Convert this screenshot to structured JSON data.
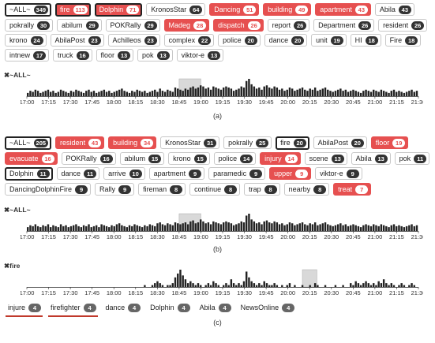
{
  "panels": [
    {
      "caption": "(a)",
      "tags": [
        {
          "label": "~ALL~",
          "count": "349",
          "style": "sel"
        },
        {
          "label": "fire",
          "count": "113",
          "style": "red sel"
        },
        {
          "label": "Dolphin",
          "count": "71",
          "style": "red sel"
        },
        {
          "label": "KronosStar",
          "count": "64",
          "style": ""
        },
        {
          "label": "Dancing",
          "count": "51",
          "style": "red"
        },
        {
          "label": "building",
          "count": "49",
          "style": "red"
        },
        {
          "label": "apartment",
          "count": "43",
          "style": "red"
        },
        {
          "label": "Abila",
          "count": "43",
          "style": ""
        },
        {
          "label": "pokrally",
          "count": "30",
          "style": ""
        },
        {
          "label": "abilum",
          "count": "29",
          "style": ""
        },
        {
          "label": "POKRally",
          "count": "29",
          "style": ""
        },
        {
          "label": "Madeg",
          "count": "28",
          "style": "red"
        },
        {
          "label": "dispatch",
          "count": "26",
          "style": "red"
        },
        {
          "label": "report",
          "count": "26",
          "style": ""
        },
        {
          "label": "Department",
          "count": "26",
          "style": ""
        },
        {
          "label": "resident",
          "count": "26",
          "style": ""
        },
        {
          "label": "krono",
          "count": "24",
          "style": ""
        },
        {
          "label": "AbilaPost",
          "count": "23",
          "style": ""
        },
        {
          "label": "Achilleos",
          "count": "23",
          "style": ""
        },
        {
          "label": "complex",
          "count": "22",
          "style": ""
        },
        {
          "label": "police",
          "count": "20",
          "style": ""
        },
        {
          "label": "dance",
          "count": "20",
          "style": ""
        },
        {
          "label": "unit",
          "count": "19",
          "style": ""
        },
        {
          "label": "HI",
          "count": "18",
          "style": ""
        },
        {
          "label": "Fire",
          "count": "18",
          "style": ""
        },
        {
          "label": "intnew",
          "count": "17",
          "style": ""
        },
        {
          "label": "truck",
          "count": "16",
          "style": ""
        },
        {
          "label": "floor",
          "count": "13",
          "style": ""
        },
        {
          "label": "pok",
          "count": "13",
          "style": ""
        },
        {
          "label": "viktor-e",
          "count": "13",
          "style": ""
        }
      ],
      "timeline": {
        "label": "✖~ALL~",
        "ticks": [
          "17:00",
          "17:15",
          "17:30",
          "17:45",
          "18:00",
          "18:15",
          "18:30",
          "18:45",
          "19:00",
          "19:15",
          "19:30",
          "19:45",
          "20:00",
          "20:15",
          "20:30",
          "20:45",
          "21:00",
          "21:15",
          "21:30"
        ],
        "highlight_times": [
          "18:45",
          "19:00"
        ],
        "values": [
          3,
          5,
          4,
          6,
          5,
          3,
          4,
          5,
          6,
          4,
          5,
          3,
          4,
          6,
          5,
          4,
          3,
          5,
          4,
          6,
          5,
          4,
          3,
          5,
          6,
          4,
          5,
          3,
          4,
          5,
          6,
          4,
          5,
          3,
          4,
          5,
          6,
          7,
          5,
          4,
          3,
          5,
          4,
          6,
          5,
          4,
          5,
          3,
          4,
          5,
          6,
          4,
          7,
          5,
          4,
          6,
          5,
          4,
          8,
          7,
          6,
          5,
          7,
          6,
          8,
          9,
          7,
          8,
          10,
          9,
          7,
          8,
          6,
          9,
          8,
          7,
          6,
          8,
          9,
          8,
          7,
          5,
          6,
          7,
          9,
          8,
          14,
          16,
          11,
          9,
          7,
          8,
          6,
          9,
          10,
          8,
          7,
          9,
          8,
          6,
          7,
          5,
          6,
          8,
          7,
          5,
          6,
          7,
          8,
          6,
          5,
          7,
          6,
          8,
          5,
          6,
          7,
          8,
          6,
          5,
          4,
          5,
          6,
          7,
          5,
          6,
          4,
          5,
          6,
          5,
          4,
          3,
          5,
          6,
          5,
          4,
          6,
          5,
          4,
          6,
          5,
          4,
          3,
          5,
          6,
          4,
          5,
          4,
          3,
          4,
          5,
          6,
          4,
          5
        ]
      }
    },
    {
      "caption": "(b)",
      "tags": [
        {
          "label": "~ALL~",
          "count": "205",
          "style": "sel"
        },
        {
          "label": "resident",
          "count": "43",
          "style": "red"
        },
        {
          "label": "building",
          "count": "34",
          "style": "red"
        },
        {
          "label": "KronosStar",
          "count": "31",
          "style": ""
        },
        {
          "label": "pokrally",
          "count": "25",
          "style": ""
        },
        {
          "label": "fire",
          "count": "20",
          "style": "sel"
        },
        {
          "label": "AbilaPost",
          "count": "20",
          "style": ""
        },
        {
          "label": "floor",
          "count": "19",
          "style": "red"
        },
        {
          "label": "evacuate",
          "count": "16",
          "style": "red"
        },
        {
          "label": "POKRally",
          "count": "16",
          "style": ""
        },
        {
          "label": "abilum",
          "count": "15",
          "style": ""
        },
        {
          "label": "krono",
          "count": "15",
          "style": ""
        },
        {
          "label": "police",
          "count": "14",
          "style": ""
        },
        {
          "label": "injury",
          "count": "14",
          "style": "red"
        },
        {
          "label": "scene",
          "count": "13",
          "style": ""
        },
        {
          "label": "Abila",
          "count": "13",
          "style": ""
        },
        {
          "label": "pok",
          "count": "11",
          "style": ""
        },
        {
          "label": "Dolphin",
          "count": "11",
          "style": "sel"
        },
        {
          "label": "dance",
          "count": "11",
          "style": ""
        },
        {
          "label": "arrive",
          "count": "10",
          "style": ""
        },
        {
          "label": "apartment",
          "count": "9",
          "style": ""
        },
        {
          "label": "paramedic",
          "count": "9",
          "style": ""
        },
        {
          "label": "upper",
          "count": "9",
          "style": "red"
        },
        {
          "label": "viktor-e",
          "count": "9",
          "style": ""
        },
        {
          "label": "DancingDolphinFire",
          "count": "9",
          "style": ""
        },
        {
          "label": "Rally",
          "count": "9",
          "style": ""
        },
        {
          "label": "fireman",
          "count": "8",
          "style": ""
        },
        {
          "label": "continue",
          "count": "8",
          "style": ""
        },
        {
          "label": "trap",
          "count": "8",
          "style": ""
        },
        {
          "label": "nearby",
          "count": "8",
          "style": ""
        },
        {
          "label": "treat",
          "count": "7",
          "style": "red"
        }
      ],
      "timeline": {
        "label": "✖~ALL~",
        "ticks": [
          "17:00",
          "17:15",
          "17:30",
          "17:45",
          "18:00",
          "18:15",
          "18:30",
          "18:45",
          "19:00",
          "19:15",
          "19:30",
          "19:45",
          "20:00",
          "20:15",
          "20:30",
          "20:45",
          "21:00",
          "21:15",
          "21:30"
        ],
        "highlight_times": [
          "18:45",
          "19:00"
        ],
        "values": [
          4,
          6,
          5,
          7,
          5,
          4,
          6,
          5,
          7,
          4,
          6,
          5,
          4,
          7,
          5,
          6,
          4,
          5,
          6,
          7,
          5,
          4,
          6,
          5,
          7,
          4,
          5,
          6,
          4,
          7,
          6,
          5,
          4,
          6,
          5,
          7,
          8,
          6,
          5,
          4,
          6,
          5,
          7,
          6,
          5,
          4,
          6,
          5,
          7,
          6,
          5,
          8,
          9,
          7,
          6,
          8,
          7,
          6,
          9,
          8,
          7,
          8,
          9,
          7,
          10,
          11,
          8,
          9,
          12,
          10,
          8,
          9,
          7,
          10,
          9,
          8,
          7,
          9,
          10,
          9,
          8,
          6,
          7,
          8,
          10,
          9,
          16,
          18,
          12,
          10,
          8,
          9,
          7,
          10,
          11,
          9,
          8,
          10,
          9,
          7,
          8,
          6,
          7,
          9,
          8,
          6,
          7,
          8,
          9,
          7,
          6,
          8,
          7,
          9,
          6,
          7,
          8,
          9,
          7,
          6,
          5,
          6,
          7,
          8,
          6,
          7,
          5,
          6,
          7,
          6,
          5,
          4,
          6,
          7,
          6,
          5,
          7,
          6,
          5,
          7,
          6,
          5,
          4,
          6,
          7,
          5,
          6,
          5,
          4,
          5,
          6,
          7,
          5,
          6
        ]
      }
    },
    {
      "caption": "(c)",
      "tags": [
        {
          "label": "injure",
          "count": "4",
          "style": "plain u"
        },
        {
          "label": "firefighter",
          "count": "4",
          "style": "plain u"
        },
        {
          "label": "dance",
          "count": "4",
          "style": "plain"
        },
        {
          "label": "Dolphin",
          "count": "4",
          "style": "plain"
        },
        {
          "label": "Abila",
          "count": "4",
          "style": "plain"
        },
        {
          "label": "NewsOnline",
          "count": "4",
          "style": "plain"
        }
      ],
      "timeline": {
        "label": "✖fire",
        "ticks": [
          "17:00",
          "17:15",
          "17:30",
          "17:45",
          "18:00",
          "18:15",
          "18:30",
          "18:45",
          "19:00",
          "19:15",
          "19:30",
          "19:45",
          "20:00",
          "20:15",
          "20:30",
          "20:45",
          "21:00",
          "21:15",
          "21:30"
        ],
        "highlight_times": [
          "20:10",
          "20:20"
        ],
        "values": [
          0,
          0,
          0,
          0,
          0,
          0,
          0,
          0,
          0,
          0,
          0,
          0,
          0,
          0,
          0,
          0,
          0,
          0,
          0,
          0,
          0,
          0,
          0,
          0,
          0,
          0,
          0,
          0,
          0,
          0,
          0,
          0,
          0,
          0,
          0,
          0,
          0,
          0,
          0,
          0,
          0,
          0,
          0,
          0,
          0,
          0,
          1,
          0,
          0,
          1,
          2,
          3,
          2,
          1,
          0,
          1,
          1,
          2,
          5,
          7,
          9,
          6,
          4,
          2,
          3,
          2,
          1,
          2,
          1,
          0,
          1,
          2,
          1,
          3,
          2,
          1,
          0,
          1,
          2,
          1,
          4,
          2,
          1,
          2,
          1,
          3,
          8,
          5,
          3,
          2,
          1,
          2,
          1,
          3,
          2,
          1,
          1,
          2,
          1,
          0,
          1,
          0,
          1,
          2,
          0,
          1,
          0,
          0,
          1,
          0,
          0,
          1,
          0,
          2,
          1,
          0,
          0,
          1,
          0,
          0,
          0,
          1,
          0,
          0,
          1,
          0,
          0,
          2,
          1,
          3,
          2,
          1,
          2,
          3,
          2,
          1,
          2,
          1,
          3,
          2,
          4,
          2,
          1,
          2,
          1,
          0,
          1,
          2,
          1,
          0,
          1,
          2,
          1,
          0
        ]
      }
    }
  ]
}
